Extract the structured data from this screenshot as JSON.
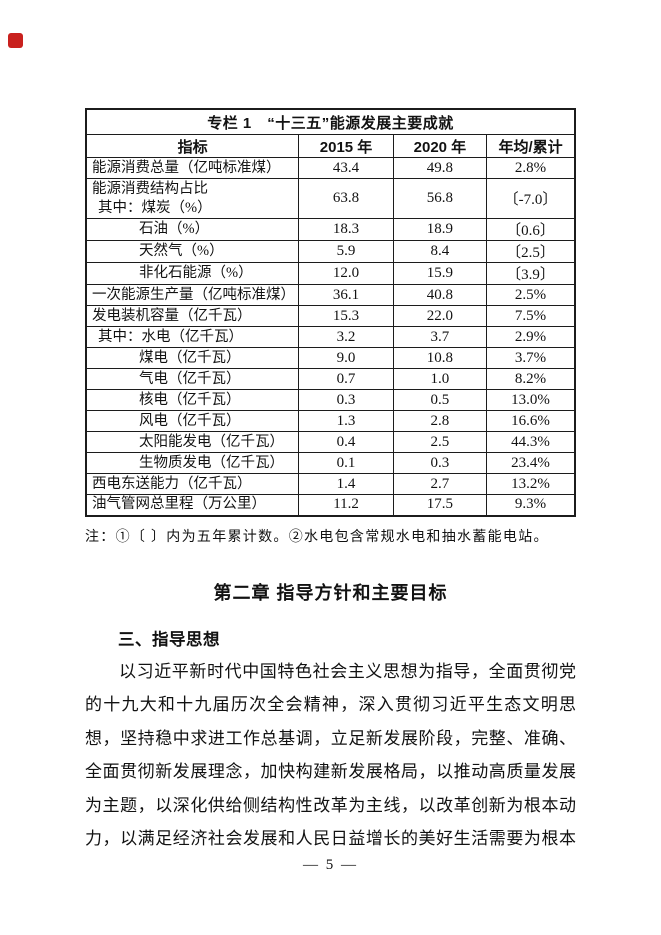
{
  "page": {
    "number_label": "— 5 —"
  },
  "marker": {
    "color": "#c9211e"
  },
  "table": {
    "title": "专栏 1　“十三五”能源发展主要成就",
    "headers": [
      "指标",
      "2015 年",
      "2020 年",
      "年均/累计"
    ],
    "rows": [
      {
        "label": "能源消费总量（亿吨标准煤）",
        "indent": 0,
        "v2015": "43.4",
        "v2020": "49.8",
        "avg": "2.8%"
      },
      {
        "label": "能源消费结构占比",
        "indent": 0,
        "label2": "其中：煤炭（%）",
        "indent2": 1,
        "tall": true,
        "v2015": "63.8",
        "v2020": "56.8",
        "avg": "〔-7.0〕"
      },
      {
        "label": "石油（%）",
        "indent": 2,
        "v2015": "18.3",
        "v2020": "18.9",
        "avg": "〔0.6〕"
      },
      {
        "label": "天然气（%）",
        "indent": 2,
        "v2015": "5.9",
        "v2020": "8.4",
        "avg": "〔2.5〕"
      },
      {
        "label": "非化石能源（%）",
        "indent": 2,
        "v2015": "12.0",
        "v2020": "15.9",
        "avg": "〔3.9〕"
      },
      {
        "label": "一次能源生产量（亿吨标准煤）",
        "indent": 0,
        "v2015": "36.1",
        "v2020": "40.8",
        "avg": "2.5%"
      },
      {
        "label": "发电装机容量（亿千瓦）",
        "indent": 0,
        "v2015": "15.3",
        "v2020": "22.0",
        "avg": "7.5%"
      },
      {
        "label": "其中：水电（亿千瓦）",
        "indent": 1,
        "v2015": "3.2",
        "v2020": "3.7",
        "avg": "2.9%"
      },
      {
        "label": "煤电（亿千瓦）",
        "indent": 2,
        "v2015": "9.0",
        "v2020": "10.8",
        "avg": "3.7%"
      },
      {
        "label": "气电（亿千瓦）",
        "indent": 2,
        "v2015": "0.7",
        "v2020": "1.0",
        "avg": "8.2%"
      },
      {
        "label": "核电（亿千瓦）",
        "indent": 2,
        "v2015": "0.3",
        "v2020": "0.5",
        "avg": "13.0%"
      },
      {
        "label": "风电（亿千瓦）",
        "indent": 2,
        "v2015": "1.3",
        "v2020": "2.8",
        "avg": "16.6%"
      },
      {
        "label": "太阳能发电（亿千瓦）",
        "indent": 2,
        "v2015": "0.4",
        "v2020": "2.5",
        "avg": "44.3%"
      },
      {
        "label": "生物质发电（亿千瓦）",
        "indent": 2,
        "v2015": "0.1",
        "v2020": "0.3",
        "avg": "23.4%"
      },
      {
        "label": "西电东送能力（亿千瓦）",
        "indent": 0,
        "v2015": "1.4",
        "v2020": "2.7",
        "avg": "13.2%"
      },
      {
        "label": "油气管网总里程（万公里）",
        "indent": 0,
        "v2015": "11.2",
        "v2020": "17.5",
        "avg": "9.3%"
      }
    ],
    "note": "注：①〔 〕内为五年累计数。②水电包含常规水电和抽水蓄能电站。"
  },
  "section": {
    "chapter_heading": "第二章 指导方针和主要目标",
    "sub_heading": "三、指导思想",
    "paragraph_lines": [
      "以习近平新时代中国特色社会主义思想为指导，全面贯彻党",
      "的十九大和十九届历次全会精神，深入贯彻习近平生态文明思",
      "想，坚持稳中求进工作总基调，立足新发展阶段，完整、准确、",
      "全面贯彻新发展理念，加快构建新发展格局，以推动高质量发展",
      "为主题，以深化供给侧结构性改革为主线，以改革创新为根本动",
      "力，以满足经济社会发展和人民日益增长的美好生活需要为根本"
    ]
  }
}
